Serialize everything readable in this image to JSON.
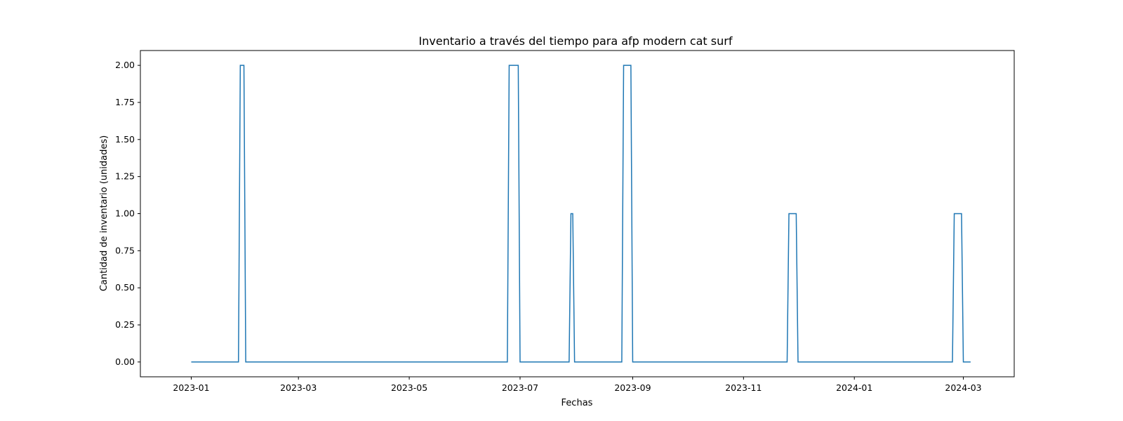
{
  "chart_data": {
    "type": "line",
    "title": "Inventario a través del tiempo para afp modern cat surf",
    "xlabel": "Fechas",
    "ylabel": "Cantidad de inventario (unidades)",
    "xlim": [
      "2022-12-04",
      "2024-03-29"
    ],
    "ylim": [
      -0.1,
      2.1
    ],
    "x_ticks": [
      "2023-01",
      "2023-03",
      "2023-05",
      "2023-07",
      "2023-09",
      "2023-11",
      "2024-01",
      "2024-03"
    ],
    "y_ticks": [
      "0.00",
      "0.25",
      "0.50",
      "0.75",
      "1.00",
      "1.25",
      "1.50",
      "1.75",
      "2.00"
    ],
    "grid": false,
    "line_color": "#1f77b4",
    "series": [
      {
        "x": [
          "2023-01-01",
          "2023-01-27",
          "2023-01-28",
          "2023-01-30",
          "2023-01-31",
          "2023-06-24",
          "2023-06-25",
          "2023-06-30",
          "2023-07-01",
          "2023-07-28",
          "2023-07-29",
          "2023-07-30",
          "2023-07-31",
          "2023-08-26",
          "2023-08-27",
          "2023-08-31",
          "2023-09-01",
          "2023-11-25",
          "2023-11-26",
          "2023-11-30",
          "2023-12-01",
          "2024-02-24",
          "2024-02-25",
          "2024-02-29",
          "2024-03-01",
          "2024-03-05"
        ],
        "y": [
          0,
          0,
          2,
          2,
          0,
          0,
          2,
          2,
          0,
          0,
          1,
          1,
          0,
          0,
          2,
          2,
          0,
          0,
          1,
          1,
          0,
          0,
          1,
          1,
          0,
          0
        ]
      }
    ]
  }
}
